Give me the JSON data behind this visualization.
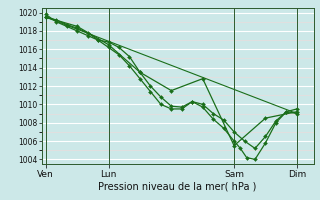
{
  "bg_color": "#cce8e8",
  "grid_color": "#ffffff",
  "grid_minor_color": "#e8f5f5",
  "line_color": "#1a6e1a",
  "xlabel": "Pression niveau de la mer( hPa )",
  "ylim": [
    1003.5,
    1020.5
  ],
  "yticks": [
    1004,
    1006,
    1008,
    1010,
    1012,
    1014,
    1016,
    1018,
    1020
  ],
  "xtick_labels": [
    "Ven",
    "Lun",
    "Sam",
    "Dim"
  ],
  "xtick_positions": [
    0,
    30,
    90,
    120
  ],
  "vline_positions": [
    0,
    30,
    90,
    120
  ],
  "xlim": [
    -2,
    128
  ],
  "series1_x": [
    0,
    5,
    10,
    15,
    20,
    25,
    30,
    35,
    40,
    45,
    50,
    55,
    60,
    65,
    70,
    75,
    80,
    85,
    90,
    93,
    96,
    100,
    105,
    110,
    115,
    120
  ],
  "series1_y": [
    1019.5,
    1019.2,
    1018.7,
    1018.3,
    1017.8,
    1017.0,
    1016.2,
    1015.4,
    1014.2,
    1012.8,
    1011.4,
    1010.0,
    1009.5,
    1009.5,
    1010.3,
    1009.7,
    1008.4,
    1007.4,
    1006.0,
    1005.2,
    1004.2,
    1004.0,
    1005.8,
    1008.0,
    1009.2,
    1009.0
  ],
  "series2_x": [
    0,
    5,
    10,
    15,
    20,
    25,
    30,
    35,
    40,
    45,
    50,
    55,
    60,
    65,
    70,
    75,
    80,
    85,
    90,
    95,
    100,
    105,
    110,
    115,
    120
  ],
  "series2_y": [
    1019.8,
    1019.0,
    1018.5,
    1018.0,
    1017.5,
    1017.0,
    1016.8,
    1016.2,
    1015.2,
    1013.5,
    1012.0,
    1010.8,
    1009.8,
    1009.7,
    1010.3,
    1010.0,
    1009.0,
    1008.3,
    1007.0,
    1006.0,
    1005.2,
    1006.5,
    1008.2,
    1009.2,
    1009.5
  ],
  "series3_x": [
    0,
    15,
    30,
    45,
    60,
    75,
    90,
    105,
    120
  ],
  "series3_y": [
    1019.5,
    1018.5,
    1016.5,
    1013.5,
    1011.5,
    1012.8,
    1005.5,
    1008.5,
    1009.2
  ],
  "series4_x": [
    0,
    120
  ],
  "series4_y": [
    1019.5,
    1009.0
  ]
}
